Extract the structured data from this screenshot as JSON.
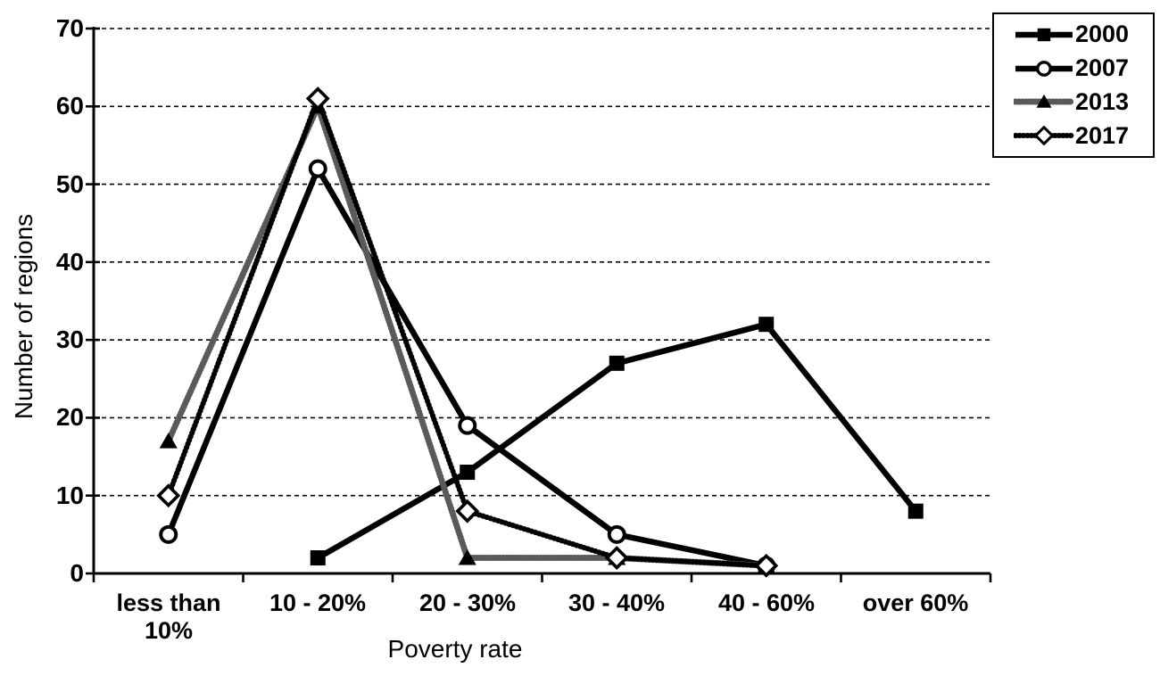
{
  "figure": {
    "background_color": "#ffffff",
    "line_color": "#000000",
    "speckled_line_color": "#5a5a5a"
  },
  "chart_data": {
    "type": "line",
    "title": "",
    "xlabel": "Poverty rate",
    "ylabel": "Number of regions",
    "categories": [
      "less than 10%",
      "10 - 20%",
      "20 - 30%",
      "30 - 40%",
      "40 - 60%",
      "over 60%"
    ],
    "yticks": [
      70,
      60,
      50,
      40,
      30,
      20,
      10,
      0
    ],
    "ylim": [
      0,
      70
    ],
    "grid": "horizontal dashed gridlines",
    "legend_position": "boxed, top-right",
    "series": [
      {
        "name": "2000",
        "line": "solid",
        "marker": "filled-square",
        "values": [
          null,
          2,
          13,
          27,
          32,
          8
        ]
      },
      {
        "name": "2007",
        "line": "solid",
        "marker": "open-circle",
        "values": [
          5,
          52,
          19,
          5,
          1,
          null
        ]
      },
      {
        "name": "2013",
        "line": "speckled",
        "marker": "filled-triangle",
        "values": [
          17,
          60,
          2,
          2,
          1,
          null
        ]
      },
      {
        "name": "2017",
        "line": "dotted",
        "marker": "open-diamond",
        "values": [
          10,
          61,
          8,
          2,
          1,
          null
        ]
      }
    ]
  }
}
